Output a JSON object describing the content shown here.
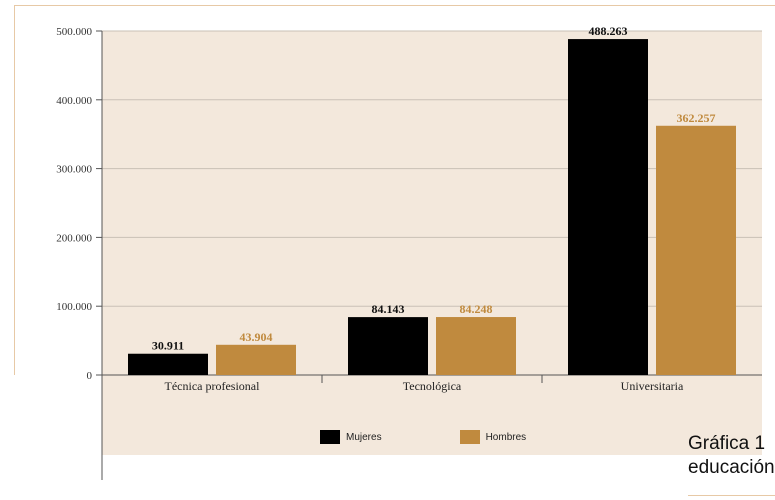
{
  "chart_data": {
    "type": "bar",
    "categories": [
      "Técnica profesional",
      "Tecnológica",
      "Universitaria"
    ],
    "series": [
      {
        "name": "Mujeres",
        "values": [
          30911,
          84143,
          488263
        ],
        "labels": [
          "30.911",
          "84.143",
          "488.263"
        ],
        "color": "#000000",
        "label_color": "#111111"
      },
      {
        "name": "Hombres",
        "values": [
          43904,
          84248,
          362257
        ],
        "labels": [
          "43.904",
          "84.248",
          "362.257"
        ],
        "color": "#c08a3e",
        "label_color": "#c08a3e"
      }
    ],
    "y_ticks": [
      {
        "value": 0,
        "label": "0"
      },
      {
        "value": 100000,
        "label": "100.000"
      },
      {
        "value": 200000,
        "label": "200.000"
      },
      {
        "value": 300000,
        "label": "300.000"
      },
      {
        "value": 400000,
        "label": "400.000"
      },
      {
        "value": 500000,
        "label": "500.000"
      }
    ],
    "ylim": [
      0,
      500000
    ],
    "grid": true,
    "plot_background": "#f3e8dc",
    "grid_color": "#c9c0b6",
    "legend_position": "bottom"
  },
  "caption": {
    "line1": "Gráfica 1",
    "line2": "educación"
  }
}
